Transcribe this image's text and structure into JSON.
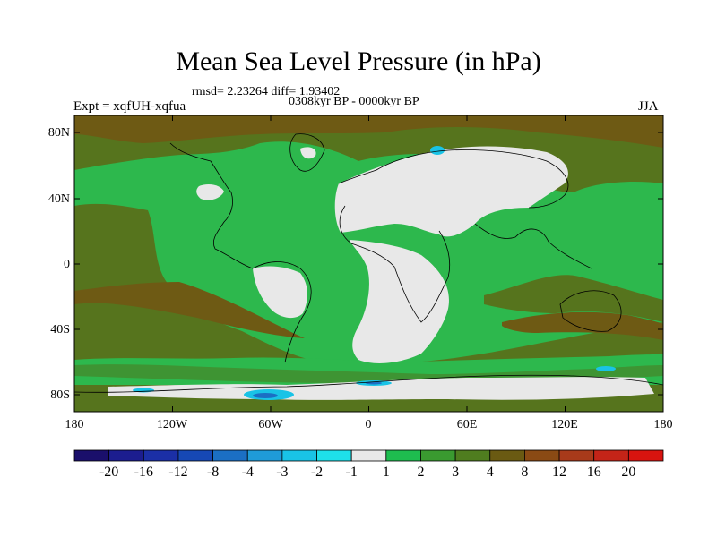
{
  "title": "Mean Sea Level Pressure (in hPa)",
  "stats": "rmsd= 2.23264 diff= 1.93402",
  "period": "0308kyr BP - 0000kyr BP",
  "experiment": "Expt = xqfUH-xqfua",
  "season": "JJA",
  "lat_ticks": [
    "80N",
    "40N",
    "0",
    "40S",
    "80S"
  ],
  "lon_ticks": [
    "180",
    "120W",
    "60W",
    "0",
    "60E",
    "120E",
    "180"
  ],
  "colorbar": {
    "labels": [
      "-20",
      "-16",
      "-12",
      "-8",
      "-4",
      "-3",
      "-2",
      "-1",
      "1",
      "2",
      "3",
      "4",
      "8",
      "12",
      "16",
      "20"
    ],
    "colors": [
      "#1a0f6b",
      "#1c1d8f",
      "#1b2fa6",
      "#1648b5",
      "#1b6fc4",
      "#1f9bd8",
      "#19c3e6",
      "#1ee0ea",
      "#e8e8e8",
      "#1ebd4f",
      "#3a9a30",
      "#4f7d1f",
      "#6a5a12",
      "#8a4a14",
      "#a83a1a",
      "#c42418",
      "#d8140f"
    ]
  },
  "palette": {
    "background": "#2db84d",
    "mid_green": "#3e9433",
    "olive": "#56741d",
    "brown": "#6e5a14",
    "dark_brown": "#7e4716",
    "near_zero": "#e8e8e8",
    "low_cyan": "#19c3e6",
    "low_blue": "#1b6fc4",
    "coast": "#000000"
  }
}
